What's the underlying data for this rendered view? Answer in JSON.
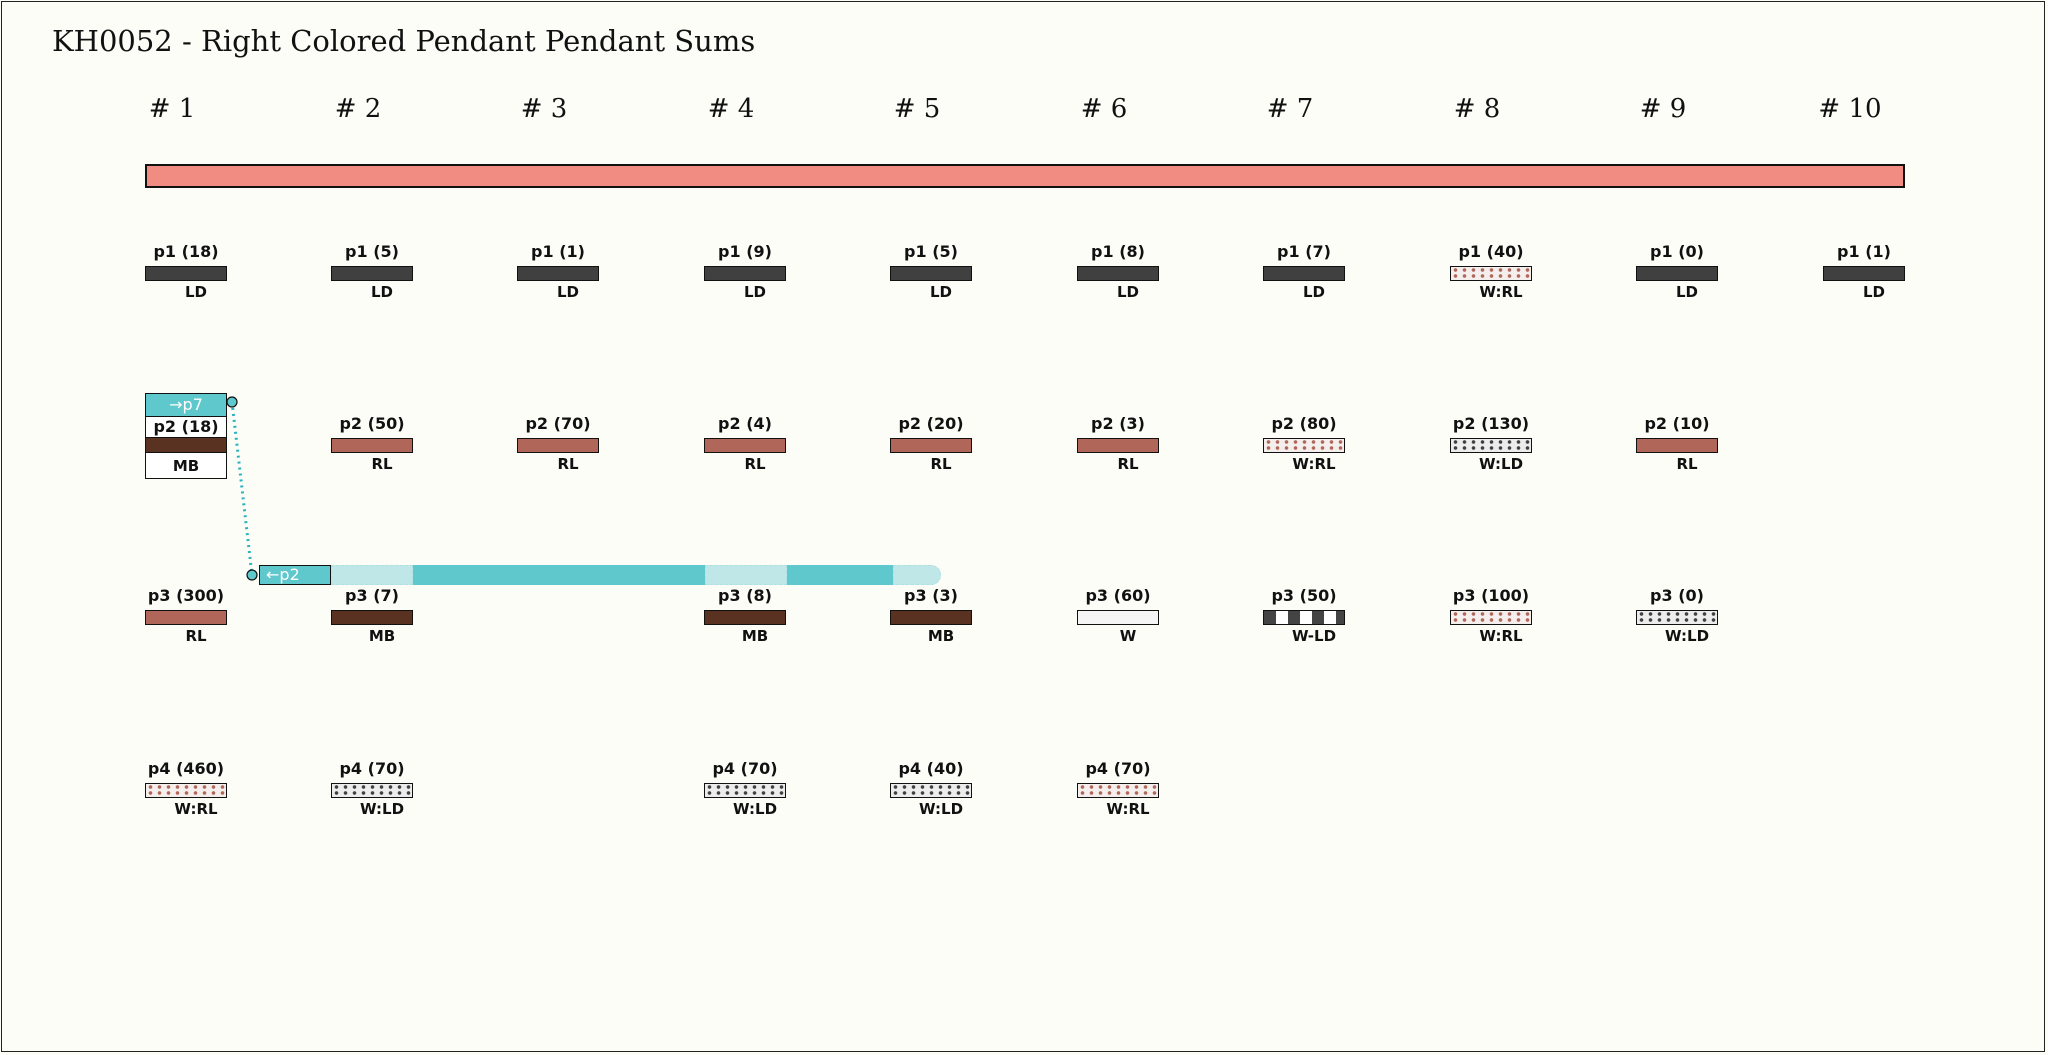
{
  "title": "KH0052 - Right Colored Pendant Pendant Sums",
  "columns": [
    "# 1",
    "# 2",
    "# 3",
    "# 4",
    "# 5",
    "# 6",
    "# 7",
    "# 8",
    "# 9",
    "# 10"
  ],
  "colors": {
    "top_cord": "#f08c82",
    "LD": "#404040",
    "RL": "#b0675a",
    "MB": "#5a3222",
    "W": "#f5f5f5",
    "link": "#5ec8cc",
    "link_light": "#bfe7e7",
    "dots_RL": "#b0675a",
    "dots_LD": "#404040"
  },
  "pendants": {
    "p1": [
      {
        "label": "p1 (18)",
        "code": "LD",
        "style": "LD"
      },
      {
        "label": "p1 (5)",
        "code": "LD",
        "style": "LD"
      },
      {
        "label": "p1 (1)",
        "code": "LD",
        "style": "LD"
      },
      {
        "label": "p1 (9)",
        "code": "LD",
        "style": "LD"
      },
      {
        "label": "p1 (5)",
        "code": "LD",
        "style": "LD"
      },
      {
        "label": "p1 (8)",
        "code": "LD",
        "style": "LD"
      },
      {
        "label": "p1 (7)",
        "code": "LD",
        "style": "LD"
      },
      {
        "label": "p1 (40)",
        "code": "W:RL",
        "style": "WRL"
      },
      {
        "label": "p1 (0)",
        "code": "LD",
        "style": "LD"
      },
      {
        "label": "p1 (1)",
        "code": "LD",
        "style": "LD"
      }
    ],
    "p2": [
      {
        "label": "p2 (50)",
        "code": "RL",
        "style": "RL"
      },
      {
        "label": "p2 (70)",
        "code": "RL",
        "style": "RL"
      },
      {
        "label": "p2 (4)",
        "code": "RL",
        "style": "RL"
      },
      {
        "label": "p2 (20)",
        "code": "RL",
        "style": "RL"
      },
      {
        "label": "p2 (3)",
        "code": "RL",
        "style": "RL"
      },
      {
        "label": "p2 (80)",
        "code": "W:RL",
        "style": "WRL"
      },
      {
        "label": "p2 (130)",
        "code": "W:LD",
        "style": "WLD"
      },
      {
        "label": "p2 (10)",
        "code": "RL",
        "style": "RL"
      }
    ],
    "p3": [
      {
        "label": "p3 (300)",
        "code": "RL",
        "style": "RL"
      },
      {
        "label": "p3 (7)",
        "code": "MB",
        "style": "MB"
      },
      {
        "label": "p3 (8)",
        "code": "MB",
        "style": "MB"
      },
      {
        "label": "p3 (3)",
        "code": "MB",
        "style": "MB"
      },
      {
        "label": "p3 (60)",
        "code": "W",
        "style": "W"
      },
      {
        "label": "p3 (50)",
        "code": "W-LD",
        "style": "W-LD"
      },
      {
        "label": "p3 (100)",
        "code": "W:RL",
        "style": "WRL"
      },
      {
        "label": "p3 (0)",
        "code": "W:LD",
        "style": "WLD"
      }
    ],
    "p4": [
      {
        "label": "p4 (460)",
        "code": "W:RL",
        "style": "WRL"
      },
      {
        "label": "p4 (70)",
        "code": "W:LD",
        "style": "WLD"
      },
      {
        "label": "p4 (70)",
        "code": "W:LD",
        "style": "WLD"
      },
      {
        "label": "p4 (40)",
        "code": "W:LD",
        "style": "WLD"
      },
      {
        "label": "p4 (70)",
        "code": "W:RL",
        "style": "WRL"
      }
    ]
  },
  "special": {
    "link_label": "→p7",
    "label": "p2 (18)",
    "code": "MB",
    "link_back_label": "←p2"
  }
}
